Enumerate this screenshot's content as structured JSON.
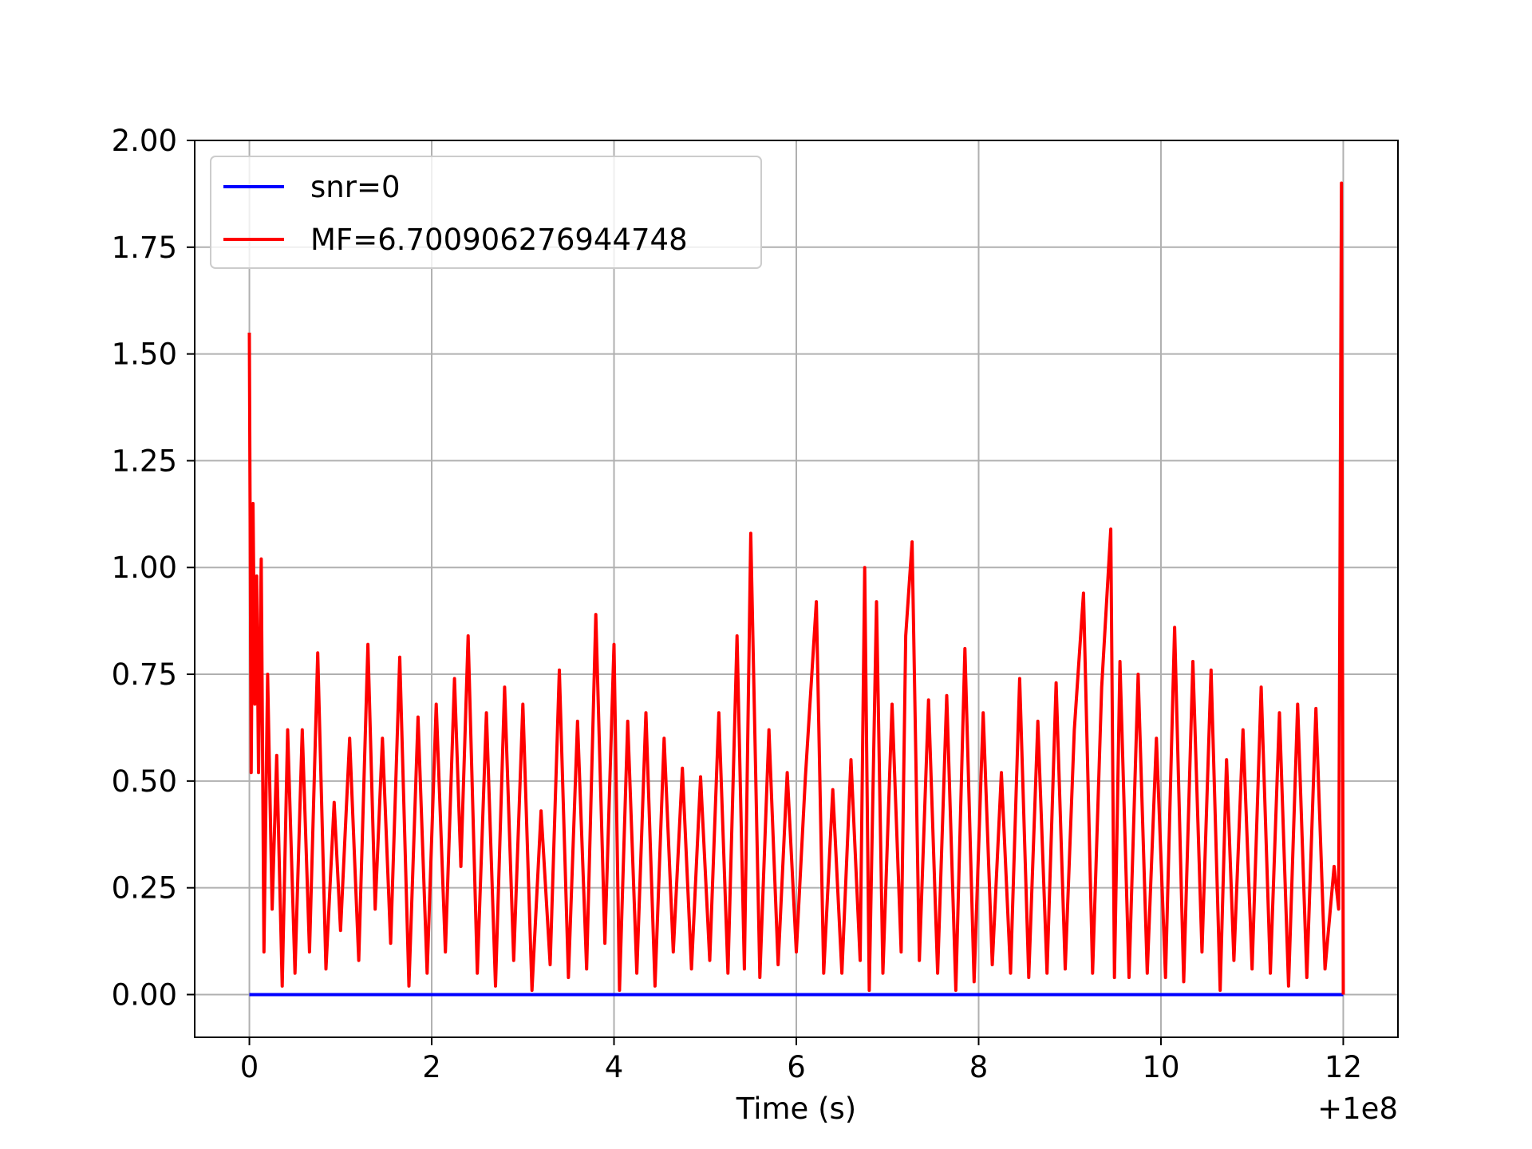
{
  "chart_data": {
    "type": "line",
    "title": "",
    "xlabel": "Time (s)",
    "ylabel": "",
    "x_offset_label": "+1e8",
    "xlim": [
      -0.6,
      12.6
    ],
    "ylim": [
      -0.1,
      2.0
    ],
    "x_ticks": [
      0,
      2,
      4,
      6,
      8,
      10,
      12
    ],
    "x_tick_labels": [
      "0",
      "2",
      "4",
      "6",
      "8",
      "10",
      "12"
    ],
    "y_ticks": [
      0.0,
      0.25,
      0.5,
      0.75,
      1.0,
      1.25,
      1.5,
      1.75,
      2.0
    ],
    "y_tick_labels": [
      "0.00",
      "0.25",
      "0.50",
      "0.75",
      "1.00",
      "1.25",
      "1.50",
      "1.75",
      "2.00"
    ],
    "grid": true,
    "legend_position": "top-left",
    "series": [
      {
        "name": "snr=0",
        "color": "#0000ff",
        "x": [
          0,
          12
        ],
        "y": [
          0,
          0
        ]
      },
      {
        "name": "MF=6.700906276944748",
        "color": "#ff0000",
        "x": [
          0.0,
          0.02,
          0.04,
          0.06,
          0.08,
          0.1,
          0.13,
          0.16,
          0.2,
          0.25,
          0.3,
          0.36,
          0.42,
          0.5,
          0.58,
          0.66,
          0.75,
          0.84,
          0.93,
          1.0,
          1.1,
          1.2,
          1.3,
          1.38,
          1.46,
          1.55,
          1.65,
          1.75,
          1.85,
          1.95,
          2.05,
          2.15,
          2.25,
          2.32,
          2.4,
          2.5,
          2.6,
          2.7,
          2.8,
          2.9,
          3.0,
          3.1,
          3.2,
          3.3,
          3.4,
          3.5,
          3.6,
          3.7,
          3.8,
          3.9,
          4.0,
          4.06,
          4.15,
          4.25,
          4.35,
          4.45,
          4.55,
          4.65,
          4.75,
          4.85,
          4.95,
          5.05,
          5.15,
          5.25,
          5.35,
          5.43,
          5.5,
          5.6,
          5.7,
          5.8,
          5.9,
          6.0,
          6.1,
          6.22,
          6.3,
          6.4,
          6.5,
          6.6,
          6.7,
          6.75,
          6.8,
          6.88,
          6.95,
          7.05,
          7.15,
          7.2,
          7.27,
          7.35,
          7.45,
          7.55,
          7.65,
          7.75,
          7.85,
          7.95,
          8.05,
          8.15,
          8.25,
          8.35,
          8.45,
          8.55,
          8.65,
          8.75,
          8.85,
          8.95,
          9.05,
          9.15,
          9.25,
          9.35,
          9.45,
          9.49,
          9.55,
          9.65,
          9.75,
          9.85,
          9.95,
          10.05,
          10.15,
          10.25,
          10.35,
          10.45,
          10.55,
          10.65,
          10.72,
          10.8,
          10.9,
          11.0,
          11.1,
          11.2,
          11.3,
          11.4,
          11.5,
          11.6,
          11.7,
          11.8,
          11.9,
          11.95,
          11.98,
          12.0
        ],
        "y": [
          1.55,
          0.52,
          1.15,
          0.68,
          0.98,
          0.52,
          1.02,
          0.1,
          0.75,
          0.2,
          0.56,
          0.02,
          0.62,
          0.05,
          0.62,
          0.1,
          0.8,
          0.06,
          0.45,
          0.15,
          0.6,
          0.08,
          0.82,
          0.2,
          0.6,
          0.12,
          0.79,
          0.02,
          0.65,
          0.05,
          0.68,
          0.1,
          0.74,
          0.3,
          0.84,
          0.05,
          0.66,
          0.02,
          0.72,
          0.08,
          0.68,
          0.01,
          0.43,
          0.07,
          0.76,
          0.04,
          0.64,
          0.06,
          0.89,
          0.12,
          0.82,
          0.01,
          0.64,
          0.05,
          0.66,
          0.02,
          0.6,
          0.1,
          0.53,
          0.06,
          0.51,
          0.08,
          0.66,
          0.05,
          0.84,
          0.06,
          1.08,
          0.04,
          0.62,
          0.07,
          0.52,
          0.1,
          0.51,
          0.92,
          0.05,
          0.48,
          0.05,
          0.55,
          0.08,
          1.0,
          0.01,
          0.92,
          0.05,
          0.68,
          0.1,
          0.84,
          1.06,
          0.08,
          0.69,
          0.05,
          0.7,
          0.01,
          0.81,
          0.03,
          0.66,
          0.07,
          0.52,
          0.05,
          0.74,
          0.04,
          0.64,
          0.05,
          0.73,
          0.06,
          0.62,
          0.94,
          0.05,
          0.72,
          1.09,
          0.04,
          0.78,
          0.04,
          0.75,
          0.05,
          0.6,
          0.04,
          0.86,
          0.03,
          0.78,
          0.1,
          0.76,
          0.01,
          0.55,
          0.08,
          0.62,
          0.06,
          0.72,
          0.05,
          0.66,
          0.02,
          0.68,
          0.04,
          0.67,
          0.06,
          0.3,
          0.2,
          1.9,
          0.0
        ]
      }
    ]
  }
}
